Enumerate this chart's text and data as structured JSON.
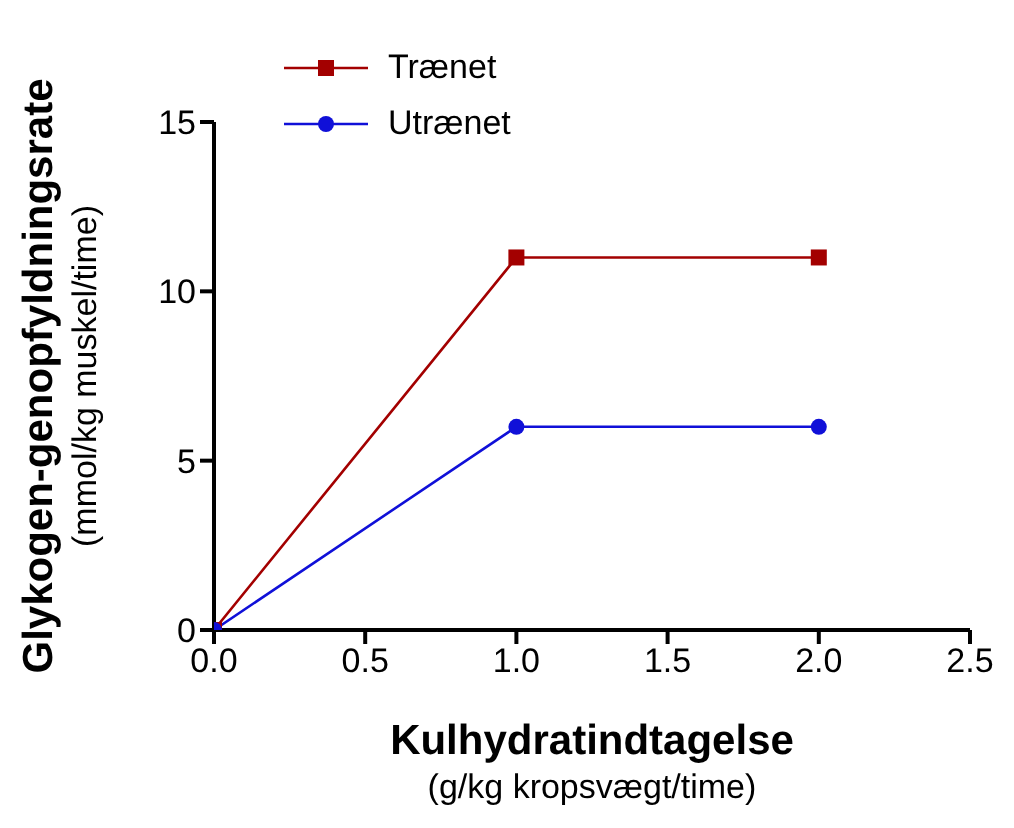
{
  "chart_data": {
    "type": "line",
    "xlabel": "Kulhydratindtagelse\n(g/kg kropsvægt/time)",
    "ylabel": "Glykogen-genopfyldningsrate\n(mmol/kg muskel/time)",
    "x": [
      0,
      1,
      2
    ],
    "series": [
      {
        "name": "Trænet",
        "color": "#a30000",
        "marker": "square",
        "values": [
          0,
          11,
          11
        ]
      },
      {
        "name": "Utrænet",
        "color": "#1010d8",
        "marker": "circle",
        "values": [
          0,
          6,
          6
        ]
      }
    ],
    "xlim": [
      0,
      2.5
    ],
    "xticks": [
      {
        "value": 0,
        "label": "0.0"
      },
      {
        "value": 0.5,
        "label": "0.5"
      },
      {
        "value": 1,
        "label": "1.0"
      },
      {
        "value": 1.5,
        "label": "1.5"
      },
      {
        "value": 2,
        "label": "2.0"
      },
      {
        "value": 2.5,
        "label": "2.5"
      }
    ],
    "ylim": [
      0,
      15
    ],
    "yticks": [
      0,
      5,
      10,
      15
    ],
    "grid": false,
    "legend": "top left"
  }
}
